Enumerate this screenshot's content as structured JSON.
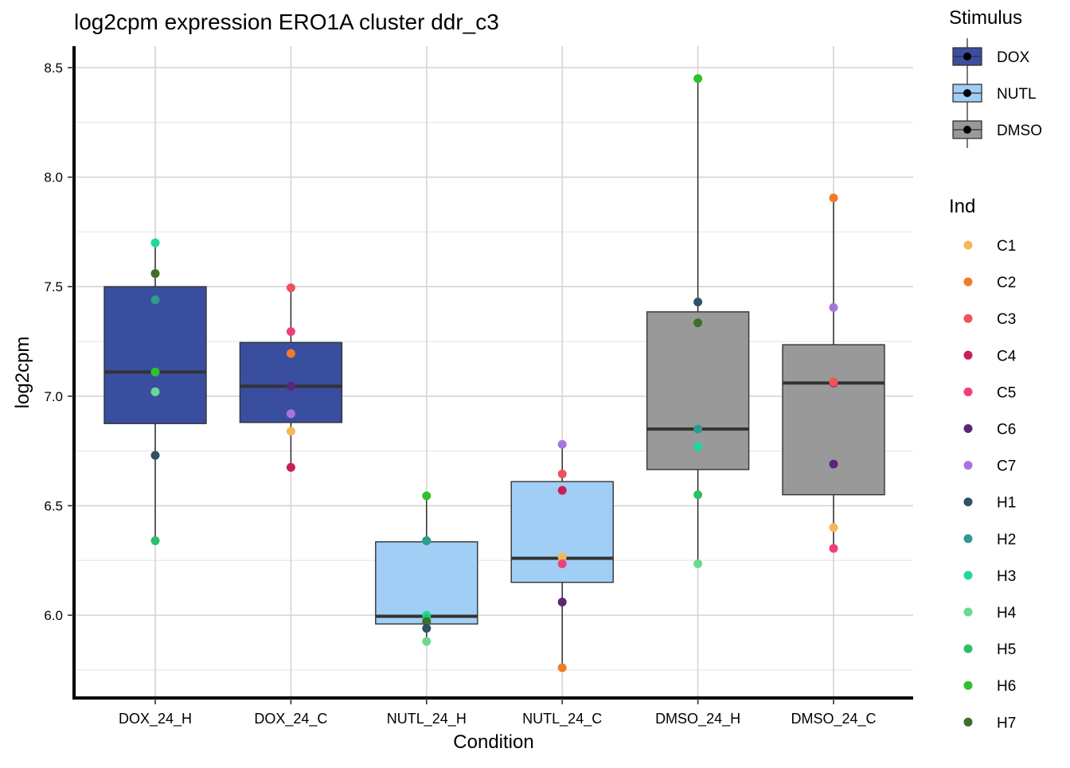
{
  "chart_data": {
    "type": "boxplot",
    "title": "log2cpm expression ERO1A cluster ddr_c3",
    "xlabel": "Condition",
    "ylabel": "log2cpm",
    "ylim": [
      5.72,
      8.6
    ],
    "yticks": [
      6.0,
      6.5,
      7.0,
      7.5,
      8.0,
      8.5
    ],
    "ytick_labels": [
      "6.0",
      "6.5",
      "7.0",
      "7.5",
      "8.0",
      "8.5"
    ],
    "minor_yticks": [
      5.75,
      6.25,
      6.75,
      7.25,
      7.75,
      8.25
    ],
    "grid": true,
    "categories": [
      "DOX_24_H",
      "DOX_24_C",
      "NUTL_24_H",
      "NUTL_24_C",
      "DMSO_24_H",
      "DMSO_24_C"
    ],
    "stimulus_colors": {
      "DOX": "#3A4EA0",
      "NUTL": "#A0CEF5",
      "DMSO": "#999999"
    },
    "boxes": [
      {
        "category": "DOX_24_H",
        "stimulus": "DOX",
        "min": 6.34,
        "q1": 6.875,
        "median": 7.11,
        "q3": 7.5,
        "max": 7.7
      },
      {
        "category": "DOX_24_C",
        "stimulus": "DOX",
        "min": 6.675,
        "q1": 6.88,
        "median": 7.045,
        "q3": 7.245,
        "max": 7.495
      },
      {
        "category": "NUTL_24_H",
        "stimulus": "NUTL",
        "min": 5.88,
        "q1": 5.96,
        "median": 5.995,
        "q3": 6.335,
        "max": 6.545
      },
      {
        "category": "NUTL_24_C",
        "stimulus": "NUTL",
        "min": 5.76,
        "q1": 6.15,
        "median": 6.26,
        "q3": 6.61,
        "max": 6.78
      },
      {
        "category": "DMSO_24_H",
        "stimulus": "DMSO",
        "min": 6.235,
        "q1": 6.665,
        "median": 6.85,
        "q3": 7.385,
        "max": 8.45
      },
      {
        "category": "DMSO_24_C",
        "stimulus": "DMSO",
        "min": 6.305,
        "q1": 6.55,
        "median": 7.06,
        "q3": 7.235,
        "max": 7.905
      }
    ],
    "points": [
      {
        "category": "DOX_24_H",
        "ind": "H3",
        "y": 7.7
      },
      {
        "category": "DOX_24_H",
        "ind": "H7",
        "y": 7.56
      },
      {
        "category": "DOX_24_H",
        "ind": "H2",
        "y": 7.44
      },
      {
        "category": "DOX_24_H",
        "ind": "H6",
        "y": 7.11
      },
      {
        "category": "DOX_24_H",
        "ind": "H4",
        "y": 7.02
      },
      {
        "category": "DOX_24_H",
        "ind": "H1",
        "y": 6.73
      },
      {
        "category": "DOX_24_H",
        "ind": "H5",
        "y": 6.34
      },
      {
        "category": "DOX_24_C",
        "ind": "C3",
        "y": 7.495
      },
      {
        "category": "DOX_24_C",
        "ind": "C5",
        "y": 7.295
      },
      {
        "category": "DOX_24_C",
        "ind": "C2",
        "y": 7.195
      },
      {
        "category": "DOX_24_C",
        "ind": "C6",
        "y": 7.045
      },
      {
        "category": "DOX_24_C",
        "ind": "C7",
        "y": 6.92
      },
      {
        "category": "DOX_24_C",
        "ind": "C1",
        "y": 6.84
      },
      {
        "category": "DOX_24_C",
        "ind": "C4",
        "y": 6.675
      },
      {
        "category": "NUTL_24_H",
        "ind": "H6",
        "y": 6.545
      },
      {
        "category": "NUTL_24_H",
        "ind": "H3",
        "y": 6.34
      },
      {
        "category": "NUTL_24_H",
        "ind": "H2",
        "y": 6.34
      },
      {
        "category": "NUTL_24_H",
        "ind": "H3",
        "y": 6.0
      },
      {
        "category": "NUTL_24_H",
        "ind": "H5",
        "y": 5.985
      },
      {
        "category": "NUTL_24_H",
        "ind": "H7",
        "y": 5.97
      },
      {
        "category": "NUTL_24_H",
        "ind": "H1",
        "y": 5.94
      },
      {
        "category": "NUTL_24_H",
        "ind": "H4",
        "y": 5.88
      },
      {
        "category": "NUTL_24_C",
        "ind": "C7",
        "y": 6.78
      },
      {
        "category": "NUTL_24_C",
        "ind": "C3",
        "y": 6.645
      },
      {
        "category": "NUTL_24_C",
        "ind": "C4",
        "y": 6.57
      },
      {
        "category": "NUTL_24_C",
        "ind": "C1",
        "y": 6.265
      },
      {
        "category": "NUTL_24_C",
        "ind": "C5",
        "y": 6.235
      },
      {
        "category": "NUTL_24_C",
        "ind": "C6",
        "y": 6.06
      },
      {
        "category": "NUTL_24_C",
        "ind": "C2",
        "y": 5.76
      },
      {
        "category": "DMSO_24_H",
        "ind": "H6",
        "y": 8.45
      },
      {
        "category": "DMSO_24_H",
        "ind": "H1",
        "y": 7.43
      },
      {
        "category": "DMSO_24_H",
        "ind": "H7",
        "y": 7.335
      },
      {
        "category": "DMSO_24_H",
        "ind": "H2",
        "y": 6.85
      },
      {
        "category": "DMSO_24_H",
        "ind": "H3",
        "y": 6.77
      },
      {
        "category": "DMSO_24_H",
        "ind": "H5",
        "y": 6.55
      },
      {
        "category": "DMSO_24_H",
        "ind": "H4",
        "y": 6.235
      },
      {
        "category": "DMSO_24_C",
        "ind": "C2",
        "y": 7.905
      },
      {
        "category": "DMSO_24_C",
        "ind": "C7",
        "y": 7.405
      },
      {
        "category": "DMSO_24_C",
        "ind": "C4",
        "y": 7.06
      },
      {
        "category": "DMSO_24_C",
        "ind": "C3",
        "y": 7.065
      },
      {
        "category": "DMSO_24_C",
        "ind": "C6",
        "y": 6.69
      },
      {
        "category": "DMSO_24_C",
        "ind": "C1",
        "y": 6.4
      },
      {
        "category": "DMSO_24_C",
        "ind": "C5",
        "y": 6.305
      }
    ],
    "legend_stimulus": {
      "title": "Stimulus",
      "items": [
        {
          "label": "DOX",
          "color": "#3A4EA0"
        },
        {
          "label": "NUTL",
          "color": "#A0CEF5"
        },
        {
          "label": "DMSO",
          "color": "#999999"
        }
      ]
    },
    "legend_ind": {
      "title": "Ind",
      "items": [
        {
          "label": "C1",
          "color": "#F6B756"
        },
        {
          "label": "C2",
          "color": "#F07C29"
        },
        {
          "label": "C3",
          "color": "#EF525A"
        },
        {
          "label": "C4",
          "color": "#C81E5A"
        },
        {
          "label": "C5",
          "color": "#EE4177"
        },
        {
          "label": "C6",
          "color": "#5E2478"
        },
        {
          "label": "C7",
          "color": "#A774DF"
        },
        {
          "label": "H1",
          "color": "#2E5164"
        },
        {
          "label": "H2",
          "color": "#2E9A90"
        },
        {
          "label": "H3",
          "color": "#1BD9A2"
        },
        {
          "label": "H4",
          "color": "#6CD990"
        },
        {
          "label": "H5",
          "color": "#2CC068"
        },
        {
          "label": "H6",
          "color": "#30C22A"
        },
        {
          "label": "H7",
          "color": "#3F6E2C"
        }
      ]
    }
  }
}
